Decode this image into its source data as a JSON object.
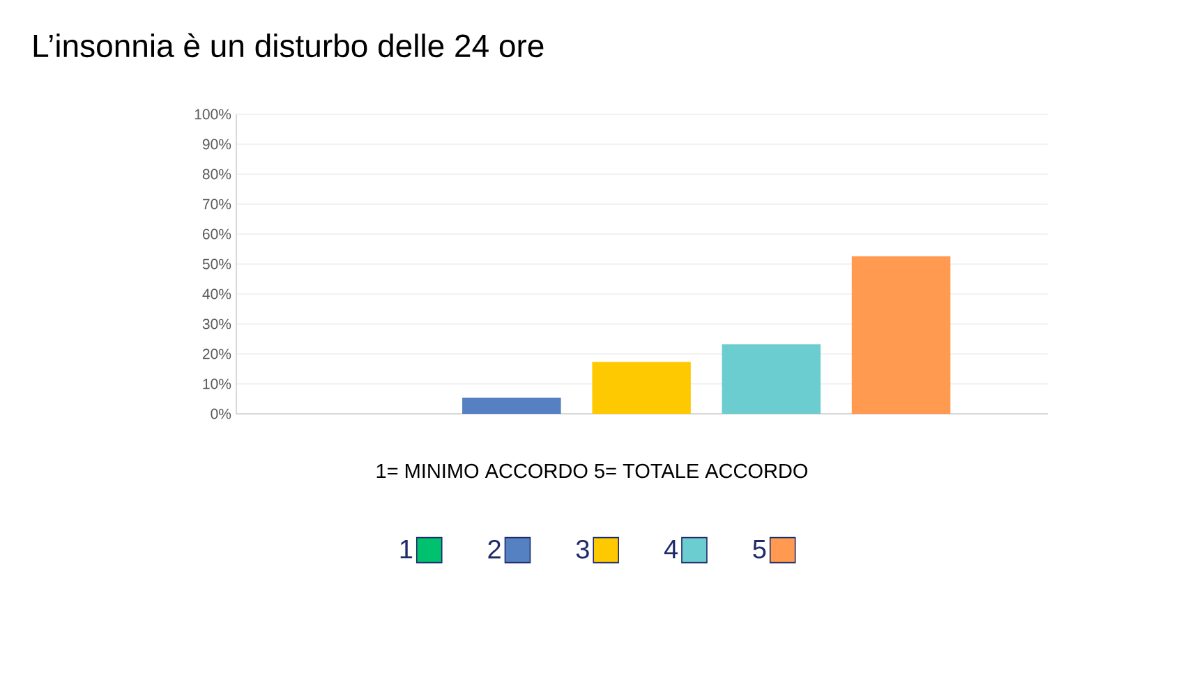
{
  "chart_data": {
    "type": "bar",
    "title": "L’insonnia è un disturbo delle 24 ore",
    "annotations": [
      "1= MINIMO ACCORDO    5= TOTALE ACCORDO"
    ],
    "categories": [
      null,
      null,
      null,
      null,
      null
    ],
    "series": [
      {
        "name": "1",
        "color": "#00c16e",
        "values": [
          0,
          null,
          null,
          null,
          null
        ]
      },
      {
        "name": "2",
        "color": "#5580c1",
        "values": [
          null,
          5.4,
          null,
          null,
          null
        ]
      },
      {
        "name": "3",
        "color": "#ffc901",
        "values": [
          null,
          null,
          17.3,
          null,
          null
        ]
      },
      {
        "name": "4",
        "color": "#6ccdd0",
        "values": [
          null,
          null,
          null,
          23.2,
          null
        ]
      },
      {
        "name": "5",
        "color": "#ff9a50",
        "values": [
          null,
          null,
          null,
          null,
          52.6
        ]
      }
    ],
    "ylim": [
      0,
      100
    ],
    "yticks": [
      {
        "value": 0,
        "label": "0%"
      },
      {
        "value": 10,
        "label": "10%"
      },
      {
        "value": 20,
        "label": "20%"
      },
      {
        "value": 30,
        "label": "30%"
      },
      {
        "value": 40,
        "label": "40%"
      },
      {
        "value": 50,
        "label": "50%"
      },
      {
        "value": 60,
        "label": "60%"
      },
      {
        "value": 70,
        "label": "70%"
      },
      {
        "value": 80,
        "label": "80%"
      },
      {
        "value": 90,
        "label": "90%"
      },
      {
        "value": 100,
        "label": "100%"
      }
    ],
    "grid": "y",
    "legend": "bottom",
    "tick_labels": "y"
  }
}
